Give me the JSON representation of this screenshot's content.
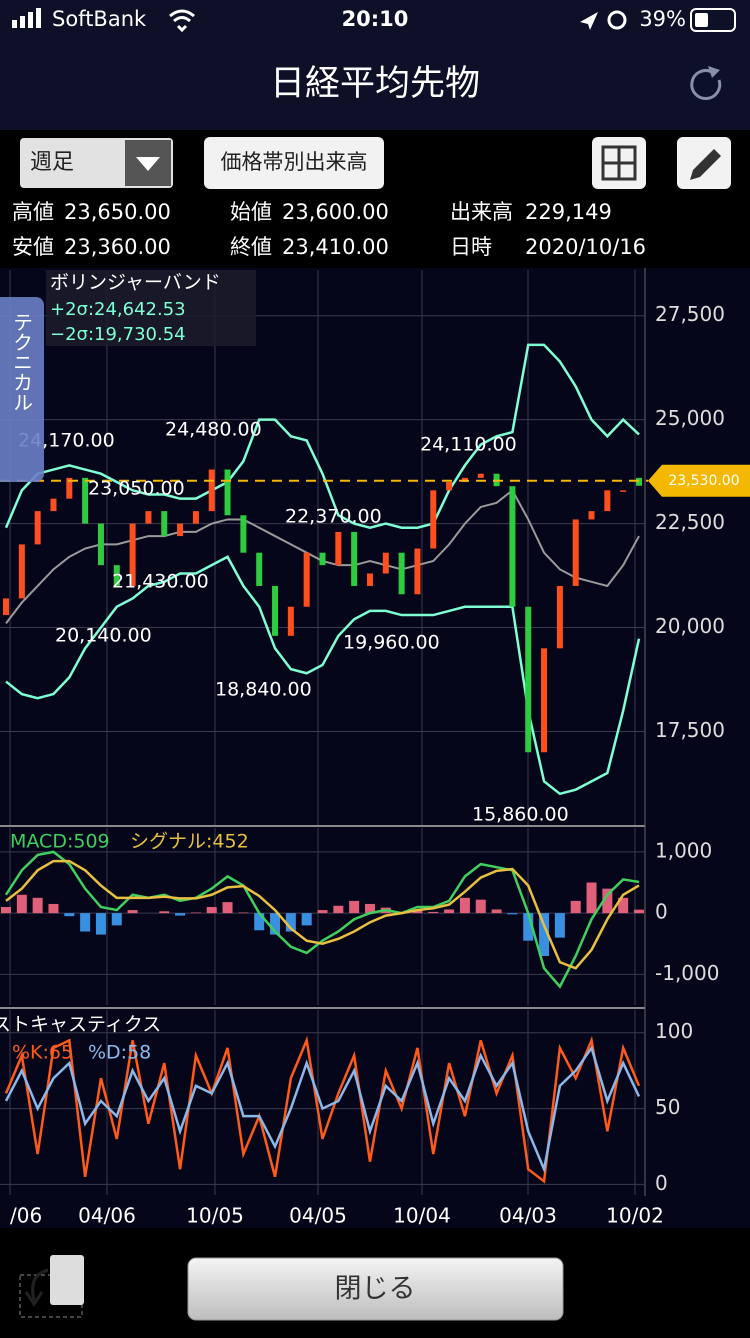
{
  "status_bar": {
    "carrier": "SoftBank",
    "time": "20:10",
    "battery": "39%"
  },
  "header": {
    "title": "日経平均先物"
  },
  "toolbar": {
    "period": "週足",
    "volume_button": "価格帯別出来高"
  },
  "info": {
    "rows": [
      {
        "label": "高値",
        "value": "23,650.00"
      },
      {
        "label": "始値",
        "value": "23,600.00"
      },
      {
        "label": "出来高",
        "value": "229,149"
      },
      {
        "label": "安値",
        "value": "23,360.00"
      },
      {
        "label": "終値",
        "value": "23,410.00"
      },
      {
        "label": "日時",
        "value": "2020/10/16"
      }
    ]
  },
  "side_tab": "テクニカル",
  "chart_data": [
    {
      "type": "candlestick",
      "title": "ボリンジャーバンド",
      "open": [
        20300,
        20700,
        22000,
        22800,
        23100,
        23600,
        22500,
        21500,
        21000,
        22500,
        22800,
        22200,
        22500,
        22800,
        23800,
        22700,
        21800,
        21000,
        19800,
        20500,
        21800,
        21500,
        22300,
        21000,
        21300,
        21800,
        20800,
        21900,
        23300,
        23500,
        23600,
        23700,
        23400,
        20500,
        17000,
        19500,
        21000,
        22600,
        22800,
        23300,
        23600
      ],
      "close": [
        20700,
        22000,
        22800,
        23100,
        23600,
        22500,
        21500,
        21000,
        22500,
        22800,
        22200,
        22500,
        22800,
        23800,
        22700,
        21800,
        21000,
        19800,
        20500,
        21800,
        21500,
        22300,
        21000,
        21300,
        21800,
        20800,
        21900,
        23300,
        23500,
        23600,
        23700,
        23400,
        20500,
        17000,
        19500,
        21000,
        22600,
        22800,
        23300,
        23300,
        23410
      ],
      "up_color": "#ff4f1f",
      "down_color": "#2ecc40",
      "bands": [
        {
          "name": "+2σ:24,642.53",
          "color": "#7fffd4",
          "values": [
            22400,
            23300,
            23700,
            23800,
            23900,
            23800,
            23700,
            23500,
            23300,
            23200,
            23200,
            23100,
            23100,
            23300,
            23500,
            24000,
            25000,
            25000,
            24600,
            24500,
            23700,
            22700,
            22500,
            22400,
            22500,
            22400,
            22400,
            22500,
            23300,
            23900,
            24400,
            24600,
            24700,
            26800,
            26800,
            26400,
            25800,
            25000,
            24600,
            25000,
            24642.53
          ]
        },
        {
          "name": "−2σ:19,730.54",
          "color": "#7fffd4",
          "values": [
            18700,
            18400,
            18300,
            18400,
            18800,
            19500,
            20000,
            20500,
            20700,
            21000,
            21100,
            21300,
            21300,
            21500,
            21700,
            21000,
            20500,
            19500,
            19000,
            18900,
            19100,
            19800,
            20200,
            20400,
            20400,
            20300,
            20300,
            20300,
            20400,
            20500,
            20500,
            20500,
            20500,
            18000,
            16300,
            16000,
            16100,
            16300,
            16500,
            18000,
            19730.54
          ]
        }
      ],
      "middle": {
        "color": "#9a9a9a",
        "values": [
          20100,
          20600,
          21000,
          21400,
          21700,
          21900,
          22000,
          22000,
          22100,
          22200,
          22200,
          22300,
          22300,
          22500,
          22600,
          22600,
          22400,
          22200,
          22000,
          21800,
          21600,
          21500,
          21500,
          21600,
          21500,
          21400,
          21500,
          21600,
          22000,
          22500,
          22900,
          23000,
          23300,
          22600,
          21800,
          21400,
          21200,
          21100,
          21000,
          21500,
          22200
        ]
      },
      "ylim": [
        15250,
        28600
      ],
      "yticks": [
        {
          "value": 17500,
          "label": "17,500"
        },
        {
          "value": 20000,
          "label": "20,000"
        },
        {
          "value": 22500,
          "label": "22,500"
        },
        {
          "value": 25000,
          "label": "25,000"
        },
        {
          "value": 27500,
          "label": "27,500"
        }
      ],
      "grid": true,
      "last_price": {
        "value": 23530,
        "label": "23,530.00",
        "color": "#f5b800"
      },
      "annotations": [
        "24,170.00",
        "24,480.00",
        "23,050.00",
        "22,370.00",
        "24,110.00",
        "21,430.00",
        "20,140.00",
        "19,960.00",
        "18,840.00",
        "15,860.00"
      ]
    },
    {
      "type": "combo",
      "series": [
        {
          "name": "MACD:509",
          "color": "#3fcf5f",
          "values": [
            300,
            700,
            950,
            1000,
            800,
            400,
            100,
            50,
            300,
            250,
            300,
            200,
            250,
            400,
            600,
            450,
            0,
            -300,
            -550,
            -650,
            -450,
            -300,
            -100,
            0,
            50,
            0,
            100,
            100,
            200,
            600,
            800,
            750,
            700,
            0,
            -900,
            -1200,
            -700,
            -100,
            300,
            550,
            509
          ]
        },
        {
          "name": "シグナル:452",
          "color": "#e8c040",
          "values": [
            200,
            400,
            700,
            850,
            850,
            700,
            450,
            250,
            250,
            250,
            270,
            240,
            240,
            300,
            420,
            440,
            280,
            50,
            -250,
            -450,
            -500,
            -420,
            -300,
            -150,
            -40,
            0,
            50,
            80,
            140,
            350,
            580,
            690,
            720,
            450,
            -200,
            -800,
            -900,
            -600,
            -100,
            300,
            452
          ]
        }
      ],
      "histogram": {
        "pos_color": "#e0607a",
        "neg_color": "#3a90e0",
        "values": [
          100,
          300,
          250,
          150,
          -50,
          -300,
          -350,
          -200,
          50,
          0,
          30,
          -40,
          10,
          100,
          180,
          10,
          -280,
          -350,
          -300,
          -200,
          50,
          120,
          200,
          150,
          90,
          0,
          50,
          20,
          60,
          250,
          220,
          60,
          -20,
          -450,
          -700,
          -400,
          200,
          500,
          400,
          250,
          57
        ]
      },
      "ylim": [
        -1500,
        1390
      ],
      "yticks": [
        {
          "value": -1000,
          "label": "-1,000"
        },
        0,
        {
          "value": 1000,
          "label": "1,000"
        }
      ],
      "grid": true
    },
    {
      "type": "line",
      "title": "ストキャスティクス",
      "series": [
        {
          "name": "%K:65",
          "color": "#ff5a1a",
          "values": [
            60,
            85,
            20,
            90,
            95,
            5,
            70,
            30,
            95,
            40,
            80,
            10,
            85,
            60,
            90,
            20,
            45,
            5,
            70,
            95,
            30,
            60,
            85,
            15,
            75,
            50,
            90,
            20,
            80,
            45,
            95,
            60,
            85,
            10,
            2,
            90,
            70,
            95,
            35,
            90,
            65
          ]
        },
        {
          "name": "%D:58",
          "color": "#8ab8ea",
          "values": [
            55,
            75,
            50,
            70,
            80,
            40,
            55,
            45,
            75,
            55,
            70,
            35,
            65,
            60,
            80,
            45,
            45,
            25,
            50,
            80,
            50,
            55,
            75,
            35,
            65,
            55,
            80,
            40,
            70,
            55,
            85,
            65,
            80,
            35,
            10,
            65,
            75,
            90,
            55,
            80,
            58
          ]
        }
      ],
      "ylim": [
        -7,
        115
      ],
      "yticks": [
        0,
        50,
        100
      ],
      "grid": true,
      "x_tick_labels": [
        "/06",
        "04/06",
        "10/05",
        "04/05",
        "10/04",
        "04/03",
        "10/02"
      ]
    }
  ],
  "footer": {
    "close_button": "閉じる"
  }
}
